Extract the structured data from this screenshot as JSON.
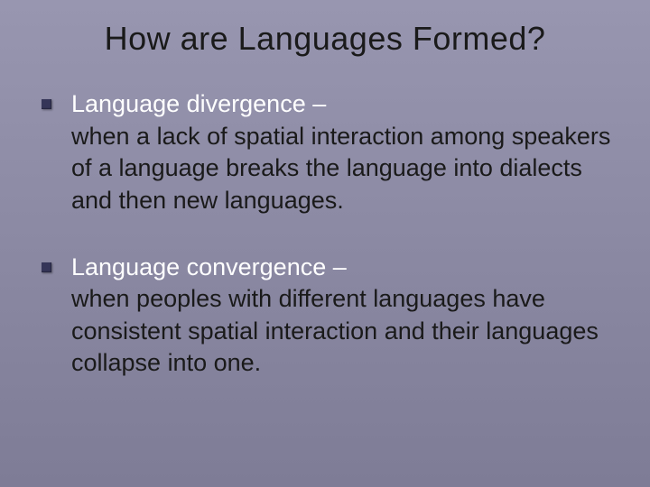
{
  "title": "How are Languages Formed?",
  "bullets": [
    {
      "term": "Language divergence –",
      "definition": "when a lack of spatial interaction among speakers of a language breaks the language into dialects and then new languages."
    },
    {
      "term": "Language convergence –",
      "definition": "when peoples with different languages have consistent spatial interaction and their languages collapse into one."
    }
  ],
  "colors": {
    "background_top": "#9896b0",
    "background_bottom": "#7e7c96",
    "title_color": "#1a1a1a",
    "term_color": "#ffffff",
    "body_color": "#1a1a1a",
    "bullet_color": "#353558"
  },
  "typography": {
    "title_fontsize": 36,
    "body_fontsize": 27,
    "font_family": "Arial"
  }
}
